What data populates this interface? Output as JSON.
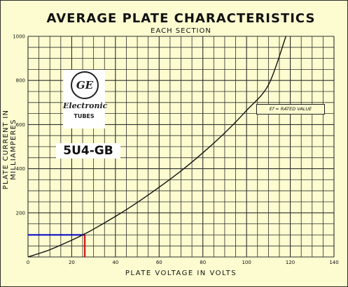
{
  "chart_data": {
    "type": "line",
    "title": "AVERAGE PLATE CHARACTERISTICS",
    "subtitle": "EACH SECTION",
    "xlabel": "PLATE VOLTAGE IN VOLTS",
    "ylabel": "PLATE CURRENT IN MILLIAMPERES",
    "xlim": [
      0,
      140
    ],
    "ylim": [
      0,
      1000
    ],
    "x_ticks": [
      "0",
      "20",
      "40",
      "60",
      "80",
      "100",
      "120",
      "140"
    ],
    "y_ticks": [
      "200",
      "400",
      "600",
      "800",
      "1000"
    ],
    "grid": true,
    "series": [
      {
        "x": [
          0,
          10,
          20,
          25,
          30,
          40,
          50,
          60,
          70,
          80,
          90,
          100,
          110,
          118
        ],
        "y": [
          0,
          33,
          76,
          100,
          126,
          184,
          247,
          316,
          390,
          472,
          562,
          664,
          780,
          1000
        ]
      }
    ],
    "annotations": {
      "reference_point": {
        "x": 26,
        "y": 100
      },
      "condition_label": "Ef = RATED VALUE"
    },
    "colors": {
      "curve": "#111111",
      "grid": "#2e2e2e",
      "hline": "#0000cc",
      "vline": "#cc0000"
    }
  },
  "logo": {
    "monogram": "GE",
    "brand": "Electronic",
    "tubes": "TUBES"
  },
  "model": "5U4-GB"
}
